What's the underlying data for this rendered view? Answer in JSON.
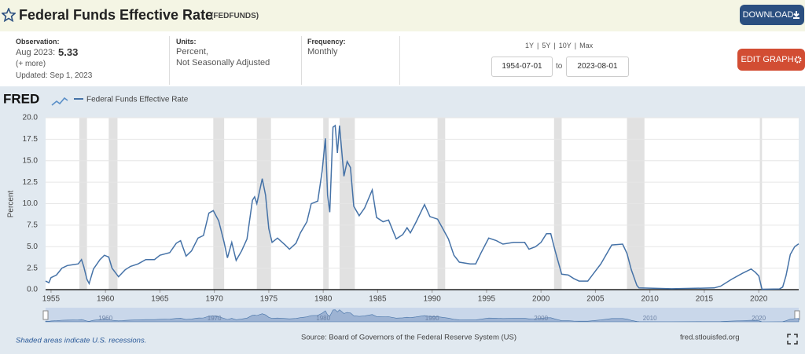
{
  "header": {
    "title": "Federal Funds Effective Rate",
    "code": "(FEDFUNDS)",
    "download": "DOWNLOAD",
    "edit": "EDIT GRAPH"
  },
  "info": {
    "obs_label": "Observation:",
    "obs_date": "Aug 2023:",
    "obs_value": "5.33",
    "more": "(+ more)",
    "updated": "Updated: Sep 1, 2023",
    "units_label": "Units:",
    "units_1": "Percent,",
    "units_2": "Not Seasonally Adjusted",
    "freq_label": "Frequency:",
    "freq": "Monthly",
    "ranges": [
      "1Y",
      "5Y",
      "10Y",
      "Max"
    ],
    "start": "1954-07-01",
    "to": "to",
    "end": "2023-08-01"
  },
  "logo": "FRED",
  "footer": {
    "note": "Shaded areas indicate U.S. recessions.",
    "source": "Source: Board of Governors of the Federal Reserve System (US)",
    "site": "fred.stlouisfed.org"
  },
  "chart_data": {
    "type": "line",
    "ylabel": "Percent",
    "xlim": [
      1954.5,
      2023.67
    ],
    "xticks": [
      1955,
      1960,
      1965,
      1970,
      1975,
      1980,
      1985,
      1990,
      1995,
      2000,
      2005,
      2010,
      2015,
      2020
    ],
    "ylim": [
      0,
      20
    ],
    "yticks": [
      {
        "value": 0,
        "label": "0.0"
      },
      2.5,
      {
        "value": 5,
        "label": "5.0"
      },
      7.5,
      {
        "value": 10,
        "label": "10.0"
      },
      12.5,
      {
        "value": 15,
        "label": "15.0"
      },
      17.5,
      {
        "value": 20,
        "label": "20.0"
      }
    ],
    "grid": true,
    "recessions": [
      [
        1957.6,
        1958.3
      ],
      [
        1960.3,
        1961.1
      ],
      [
        1969.9,
        1970.9
      ],
      [
        1973.9,
        1975.2
      ],
      [
        1980.0,
        1980.5
      ],
      [
        1981.5,
        1982.9
      ],
      [
        1990.5,
        1991.2
      ],
      [
        2001.2,
        2001.9
      ],
      [
        2007.9,
        2009.5
      ],
      [
        2020.1,
        2020.3
      ]
    ],
    "navigator_xticks": [
      1960,
      1970,
      1980,
      1990,
      2000,
      2010,
      2020
    ],
    "series": [
      {
        "name": "Federal Funds Effective Rate",
        "color": "#4572a7",
        "x": [
          1954.5,
          1954.8,
          1955,
          1955.5,
          1956,
          1956.5,
          1957,
          1957.5,
          1957.8,
          1958,
          1958.3,
          1958.5,
          1958.9,
          1959.5,
          1959.9,
          1960.3,
          1960.6,
          1960.9,
          1961.2,
          1961.5,
          1961.8,
          1962.3,
          1963,
          1963.7,
          1964.5,
          1965,
          1965.9,
          1966.5,
          1966.9,
          1967.4,
          1967.9,
          1968.5,
          1969,
          1969.5,
          1969.9,
          1970.4,
          1970.9,
          1971.2,
          1971.6,
          1972,
          1972.5,
          1973,
          1973.5,
          1973.7,
          1973.9,
          1974.4,
          1974.7,
          1975,
          1975.3,
          1975.8,
          1976.5,
          1976.9,
          1977.5,
          1977.9,
          1978.5,
          1978.9,
          1979.5,
          1979.9,
          1980.2,
          1980.4,
          1980.6,
          1980.9,
          1981.1,
          1981.3,
          1981.5,
          1981.9,
          1982.2,
          1982.5,
          1982.8,
          1983.3,
          1983.8,
          1984.5,
          1984.9,
          1985.5,
          1986,
          1986.7,
          1987.3,
          1987.7,
          1988,
          1988.5,
          1989.3,
          1989.8,
          1990.5,
          1990.9,
          1991.5,
          1992,
          1992.5,
          1993.5,
          1994,
          1994.5,
          1995.2,
          1995.9,
          1996.5,
          1997.5,
          1998.5,
          1998.9,
          1999.5,
          2000,
          2000.5,
          2000.9,
          2001.3,
          2001.9,
          2002.5,
          2003,
          2003.5,
          2004.3,
          2004.6,
          2005.5,
          2006.5,
          2007.5,
          2007.9,
          2008.3,
          2008.8,
          2009,
          2012,
          2015.9,
          2016.5,
          2017.5,
          2018.5,
          2019.3,
          2019.7,
          2020,
          2020.3,
          2021.9,
          2022.2,
          2022.5,
          2022.9,
          2023.3,
          2023.67
        ],
        "values": [
          1.0,
          0.8,
          1.4,
          1.7,
          2.5,
          2.8,
          2.9,
          3.0,
          3.5,
          2.7,
          1.2,
          0.7,
          2.4,
          3.5,
          4.0,
          3.8,
          2.5,
          2.0,
          1.5,
          1.9,
          2.3,
          2.7,
          3.0,
          3.5,
          3.5,
          4.0,
          4.3,
          5.4,
          5.7,
          3.9,
          4.5,
          6.0,
          6.3,
          8.9,
          9.2,
          8.0,
          5.5,
          3.7,
          5.5,
          3.4,
          4.5,
          5.9,
          10.4,
          10.8,
          10.0,
          12.9,
          11.0,
          7.1,
          5.5,
          6.0,
          5.2,
          4.7,
          5.4,
          6.6,
          7.9,
          10.0,
          10.3,
          13.8,
          17.6,
          11.0,
          9.0,
          18.9,
          19.1,
          15.9,
          19.1,
          13.2,
          14.9,
          14.2,
          9.7,
          8.6,
          9.5,
          11.6,
          8.4,
          7.9,
          8.1,
          5.9,
          6.4,
          7.2,
          6.6,
          7.8,
          9.9,
          8.5,
          8.2,
          7.3,
          5.9,
          4.0,
          3.2,
          3.0,
          3.0,
          4.3,
          6.0,
          5.7,
          5.3,
          5.5,
          5.5,
          4.7,
          5.0,
          5.5,
          6.5,
          6.5,
          4.5,
          1.8,
          1.7,
          1.3,
          1.0,
          1.0,
          1.5,
          3.0,
          5.2,
          5.3,
          4.2,
          2.3,
          0.5,
          0.2,
          0.1,
          0.2,
          0.4,
          1.2,
          1.9,
          2.4,
          2.0,
          1.6,
          0.05,
          0.08,
          0.3,
          1.6,
          4.1,
          5.0,
          5.33
        ]
      }
    ]
  }
}
